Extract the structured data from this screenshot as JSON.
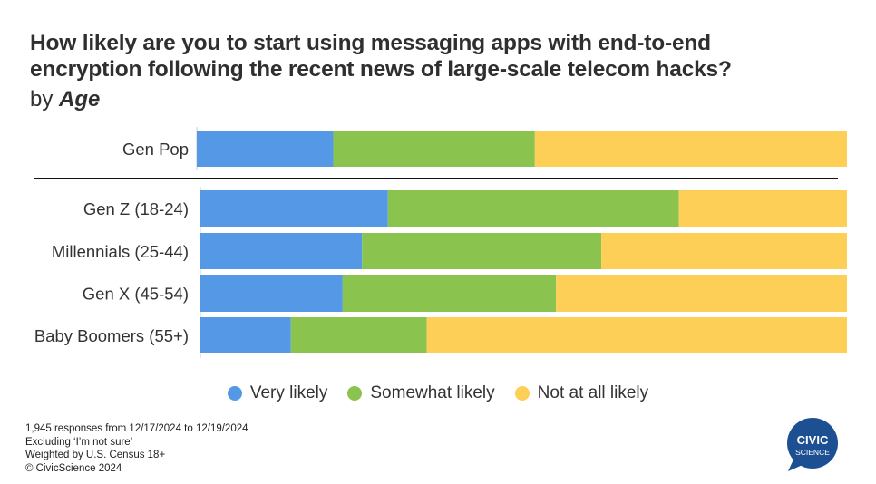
{
  "title_lines": [
    "How likely are you to start using messaging apps with end-to-end",
    "encryption following the recent news of large-scale telecom hacks?"
  ],
  "subtitle": {
    "prefix": "by ",
    "dimension": "Age"
  },
  "chart_data": {
    "type": "bar",
    "orientation": "horizontal",
    "stacked": "100%",
    "categories": [
      "Gen Pop",
      "Gen Z (18-24)",
      "Millennials (25-44)",
      "Gen X (45-54)",
      "Baby Boomers (55+)"
    ],
    "series": [
      {
        "name": "Very likely",
        "color": "#5599e6",
        "values": [
          21,
          29,
          25,
          22,
          14
        ]
      },
      {
        "name": "Somewhat likely",
        "color": "#8bc34f",
        "values": [
          31,
          45,
          37,
          33,
          21
        ]
      },
      {
        "name": "Not at all likely",
        "color": "#fdcf57",
        "values": [
          48,
          26,
          38,
          45,
          65
        ]
      }
    ],
    "xlim": [
      0,
      100
    ],
    "legend_position": "bottom"
  },
  "footnotes": [
    "1,945 responses from 12/17/2024 to 12/19/2024",
    "Excluding ‘I’m not sure’",
    "Weighted by U.S. Census 18+",
    "© CivicScience 2024"
  ],
  "logo": {
    "line1": "CIVIC",
    "line2": "SCIENCE",
    "color": "#1d4f93"
  }
}
